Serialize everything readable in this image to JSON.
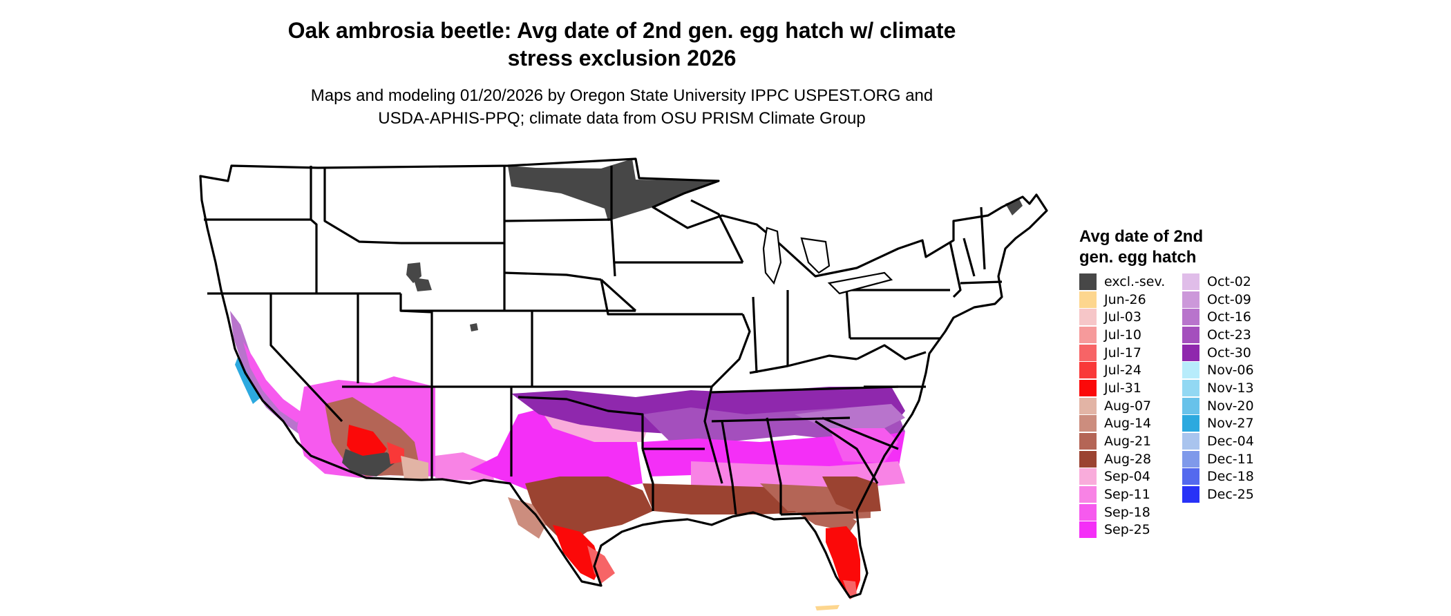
{
  "title_line1": "Oak ambrosia beetle: Avg date of 2nd gen. egg hatch w/ climate",
  "title_line2": "stress exclusion 2026",
  "subtitle_line1": "Maps and modeling 01/20/2026 by Oregon State University IPPC USPEST.ORG and",
  "subtitle_line2": "USDA-APHIS-PPQ; climate data from OSU PRISM Climate Group",
  "legend": {
    "title_line1": "Avg date of 2nd",
    "title_line2": "gen. egg hatch",
    "items": [
      {
        "label": "excl.-sev.",
        "color": "#474747"
      },
      {
        "label": "Jun-26",
        "color": "#fdd68e"
      },
      {
        "label": "Jul-03",
        "color": "#f6c6c8"
      },
      {
        "label": "Jul-10",
        "color": "#f69a9b"
      },
      {
        "label": "Jul-17",
        "color": "#f76466"
      },
      {
        "label": "Jul-24",
        "color": "#f93838"
      },
      {
        "label": "Jul-31",
        "color": "#fb0909"
      },
      {
        "label": "Aug-07",
        "color": "#e2b4a5"
      },
      {
        "label": "Aug-14",
        "color": "#cc8d7e"
      },
      {
        "label": "Aug-21",
        "color": "#b46556"
      },
      {
        "label": "Aug-28",
        "color": "#9b4331"
      },
      {
        "label": "Sep-04",
        "color": "#f9acdb"
      },
      {
        "label": "Sep-11",
        "color": "#f883e5"
      },
      {
        "label": "Sep-18",
        "color": "#f65aee"
      },
      {
        "label": "Sep-25",
        "color": "#f42ff7"
      },
      {
        "label": "Oct-02",
        "color": "#e0bde9"
      },
      {
        "label": "Oct-09",
        "color": "#cc98da"
      },
      {
        "label": "Oct-16",
        "color": "#b874cc"
      },
      {
        "label": "Oct-23",
        "color": "#a44fbd"
      },
      {
        "label": "Oct-30",
        "color": "#8f28ad"
      },
      {
        "label": "Nov-06",
        "color": "#b7ecfb"
      },
      {
        "label": "Nov-13",
        "color": "#92d8f3"
      },
      {
        "label": "Nov-20",
        "color": "#68c2ea"
      },
      {
        "label": "Nov-27",
        "color": "#2ca9df"
      },
      {
        "label": "Dec-04",
        "color": "#a9c4ee"
      },
      {
        "label": "Dec-11",
        "color": "#7f99ea"
      },
      {
        "label": "Dec-18",
        "color": "#5469ee"
      },
      {
        "label": "Dec-25",
        "color": "#2832f7"
      }
    ]
  }
}
